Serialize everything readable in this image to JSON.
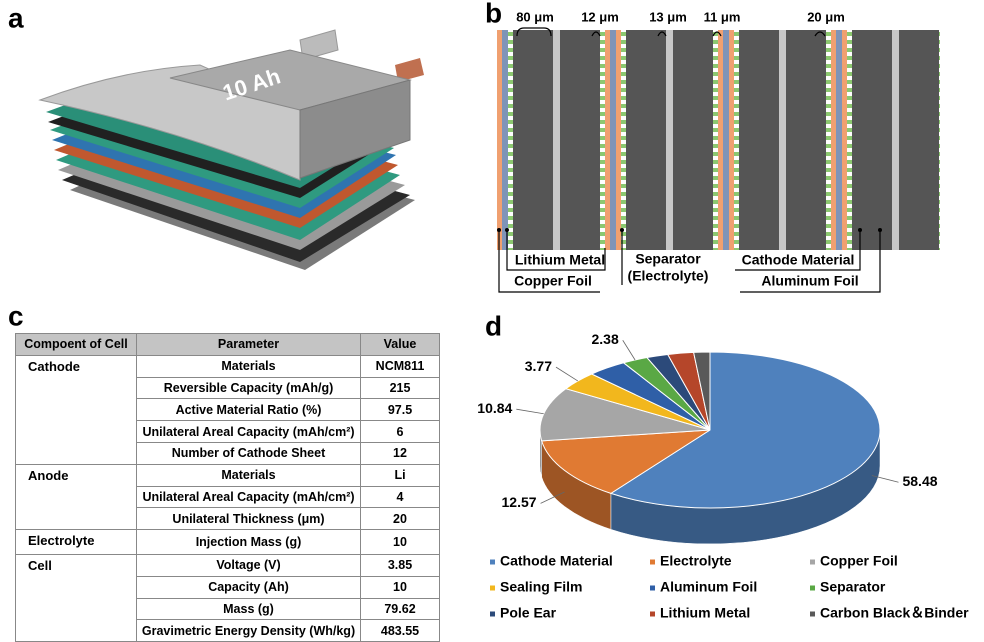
{
  "panels": {
    "a": "a",
    "b": "b",
    "c": "c",
    "d": "d"
  },
  "cell": {
    "capacity_label": "10 Ah"
  },
  "diagram": {
    "dimensions": [
      "80 μm",
      "12 μm",
      "13 μm",
      "11 μm",
      "20 μm"
    ],
    "labels": {
      "lithium": "Lithium Metal",
      "copper": "Copper Foil",
      "separator": "Separator",
      "electrolyte": "(Electrolyte)",
      "cathode": "Cathode Material",
      "aluminum": "Aluminum Foil"
    }
  },
  "table": {
    "header": [
      "Compoent of Cell",
      "Parameter",
      "Value"
    ],
    "groups": [
      {
        "name": "Cathode",
        "rows": [
          [
            "Materials",
            "NCM811"
          ],
          [
            "Reversible Capacity (mAh/g)",
            "215"
          ],
          [
            "Active Material Ratio (%)",
            "97.5"
          ],
          [
            "Unilateral Areal Capacity (mAh/cm²)",
            "6"
          ],
          [
            "Number of Cathode Sheet",
            "12"
          ]
        ]
      },
      {
        "name": "Anode",
        "rows": [
          [
            "Materials",
            "Li"
          ],
          [
            "Unilateral Areal Capacity (mAh/cm²)",
            "4"
          ],
          [
            "Unilateral Thickness (μm)",
            "20"
          ]
        ]
      },
      {
        "name": "Electrolyte",
        "rows": [
          [
            "Injection Mass (g)",
            "10"
          ]
        ]
      },
      {
        "name": "Cell",
        "rows": [
          [
            "Voltage (V)",
            "3.85"
          ],
          [
            "Capacity (Ah)",
            "10"
          ],
          [
            "Mass (g)",
            "79.62"
          ],
          [
            "Gravimetric Energy Density (Wh/kg)",
            "483.55"
          ]
        ]
      }
    ]
  },
  "chart_data": {
    "type": "pie",
    "categories": [
      "Cathode Material",
      "Electrolyte",
      "Copper Foil",
      "Sealing Film",
      "Aluminum Foil",
      "Separator",
      "Pole Ear",
      "Lithium Metal",
      "Carbon Black＆Binder"
    ],
    "values": [
      58.48,
      12.57,
      10.84,
      3.77,
      3.68,
      2.38,
      2.0,
      2.4,
      1.5
    ],
    "value_labels": [
      "58.48",
      "12.57",
      "10.84",
      "3.77",
      null,
      "2.38",
      null,
      null,
      null
    ],
    "colors": [
      "#4f81bd",
      "#e07a33",
      "#a6a6a6",
      "#f2b71d",
      "#2f5fa7",
      "#5aa845",
      "#2c4a7a",
      "#b5462a",
      "#595959"
    ]
  }
}
